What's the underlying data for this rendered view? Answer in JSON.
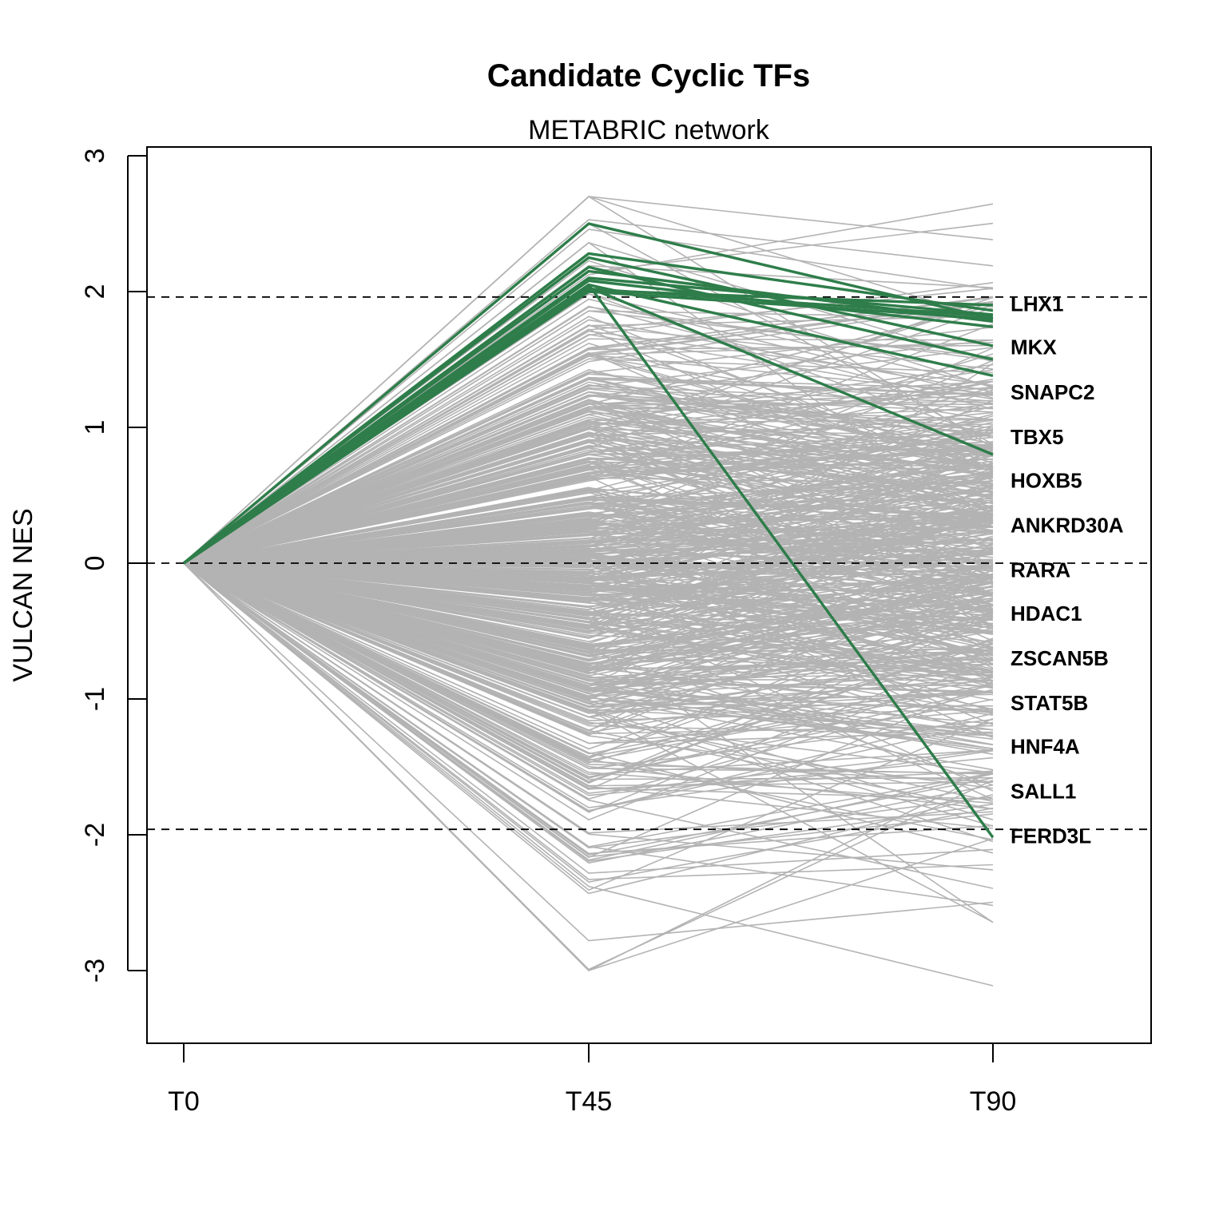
{
  "chart_data": {
    "type": "line",
    "title": "Candidate Cyclic TFs",
    "subtitle": "METABRIC network",
    "xlabel": "",
    "ylabel": "VULCAN NES",
    "x_categories": [
      "T0",
      "T45",
      "T90"
    ],
    "ylim": [
      -3.5,
      3.05
    ],
    "yticks": [
      -3,
      -2,
      -1,
      0,
      1,
      2,
      3
    ],
    "reference_lines": [
      1.96,
      0,
      -1.96
    ],
    "colors": {
      "background_series": "#b3b3b3",
      "highlight_series": "#2e7d4a",
      "reference_line": "#000000"
    },
    "background_series": {
      "count": 600,
      "t45_range": [
        -3.0,
        2.7
      ],
      "t90_range": [
        -3.3,
        2.82
      ]
    },
    "highlight_series": [
      {
        "values": [
          0,
          2.5,
          1.8
        ]
      },
      {
        "values": [
          0,
          2.28,
          1.86
        ]
      },
      {
        "values": [
          0,
          2.25,
          1.6
        ]
      },
      {
        "values": [
          0,
          2.18,
          1.5
        ]
      },
      {
        "values": [
          0,
          2.15,
          1.78
        ]
      },
      {
        "values": [
          0,
          2.1,
          1.83
        ]
      },
      {
        "values": [
          0,
          2.08,
          1.74
        ]
      },
      {
        "values": [
          0,
          2.05,
          1.38
        ]
      },
      {
        "values": [
          0,
          2.03,
          0.8
        ]
      },
      {
        "values": [
          0,
          2.02,
          1.82
        ]
      },
      {
        "values": [
          0,
          2.01,
          1.9
        ]
      },
      {
        "values": [
          0,
          2.0,
          1.8
        ]
      },
      {
        "values": [
          0,
          2.05,
          -2.02
        ]
      }
    ],
    "labels": [
      {
        "text": "LHX1",
        "y": 1.91
      },
      {
        "text": "MKX",
        "y": 1.59
      },
      {
        "text": "SNAPC2",
        "y": 1.26
      },
      {
        "text": "TBX5",
        "y": 0.93
      },
      {
        "text": "HOXB5",
        "y": 0.61
      },
      {
        "text": "ANKRD30A",
        "y": 0.28
      },
      {
        "text": "RARA",
        "y": -0.05
      },
      {
        "text": "HDAC1",
        "y": -0.37
      },
      {
        "text": "ZSCAN5B",
        "y": -0.7
      },
      {
        "text": "STAT5B",
        "y": -1.03
      },
      {
        "text": "HNF4A",
        "y": -1.35
      },
      {
        "text": "SALL1",
        "y": -1.68
      },
      {
        "text": "FERD3L",
        "y": -2.01
      }
    ]
  }
}
